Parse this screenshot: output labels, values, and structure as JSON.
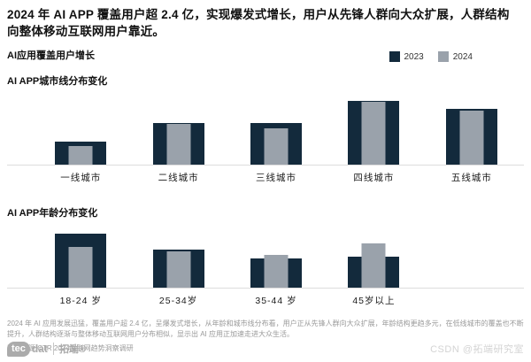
{
  "page": {
    "main_title": "2024 年 AI APP 覆盖用户超 2.4 亿，实现爆发式增长，用户从先锋人群向大众扩展，人群结构向整体移动互联网用户靠近。",
    "section_title": "AI应用覆盖用户增长"
  },
  "colors": {
    "bar_2023": "#132a3c",
    "bar_2024": "#9aa2ab",
    "axis_line": "#dddddd"
  },
  "legend": {
    "items": [
      {
        "label": "2023",
        "color": "#132a3c"
      },
      {
        "label": "2024",
        "color": "#9aa2ab"
      }
    ]
  },
  "chart_data": [
    {
      "type": "bar",
      "title": "AI APP城市线分布变化",
      "categories": [
        "一线城市",
        "二线城市",
        "三线城市",
        "四线城市",
        "五线城市"
      ],
      "series": [
        {
          "name": "2023",
          "values": [
            26,
            47,
            47,
            72,
            63
          ]
        },
        {
          "name": "2024",
          "values": [
            21,
            46,
            41,
            71,
            61
          ]
        }
      ],
      "xlabel": "",
      "ylabel": "",
      "value_units": "relative (no y-axis labels shown)",
      "layout": {
        "slots": 5,
        "overlapped_bars": true,
        "grid": false,
        "legend_position": "top-right"
      }
    },
    {
      "type": "bar",
      "title": "AI APP年龄分布变化",
      "categories": [
        "18-24 岁",
        "25-34岁",
        "35-44 岁",
        "45岁以上"
      ],
      "series": [
        {
          "name": "2023",
          "values": [
            61,
            43,
            33,
            35
          ]
        },
        {
          "name": "2024",
          "values": [
            46,
            41,
            37,
            50
          ]
        }
      ],
      "xlabel": "",
      "ylabel": "",
      "value_units": "relative (no y-axis labels shown)",
      "layout": {
        "slots": 5,
        "overlapped_bars": true,
        "grid": false,
        "legend_position": "shared-top-right"
      }
    }
  ],
  "footnote": "2024 年 AI 应用发展迅猛，覆盖用户超 2.4 亿，呈爆发式增长，从年龄和城市线分布看，用户正从先锋人群向大众扩展，年龄结构更趋多元，在低线城市的覆盖也不断提升，人群结构逐渐与整体移动互联网用户分布相似，显示出 AI 应用正加速走进大众生活。",
  "source": "数据来源:CTR 2024互联网趋势洞察调研",
  "footer": {
    "logo_badge": "tec",
    "logo_rest": "dat",
    "logo_cn": "拓端®",
    "watermark": "CSDN @拓端研究室"
  }
}
